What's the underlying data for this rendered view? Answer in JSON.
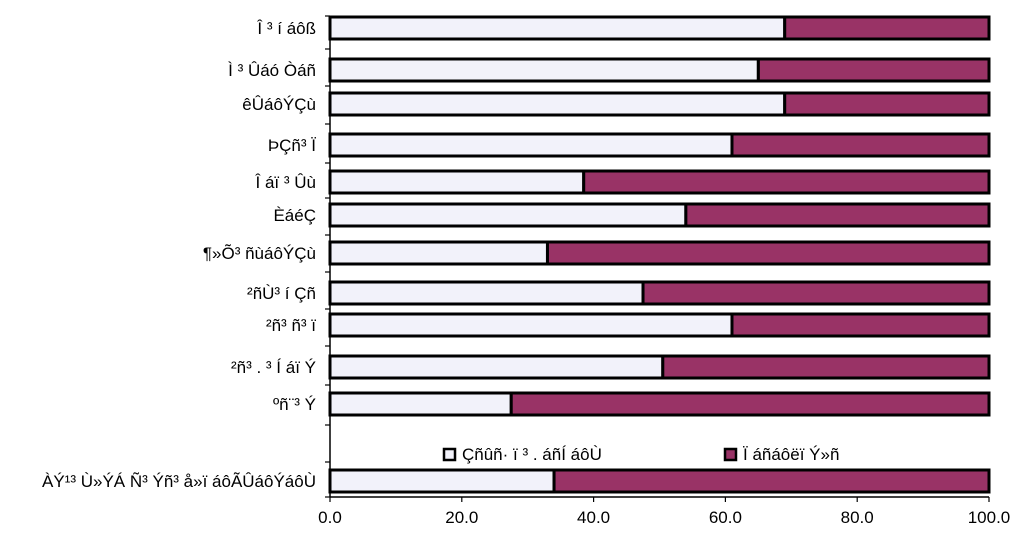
{
  "chart_data": {
    "type": "bar",
    "orientation": "horizontal",
    "stacked": true,
    "percent_stacked": true,
    "categories": [
      "Î ³ í áôß",
      "Ì ³ Ûáó Òáñ",
      "êÛáôÝÇù",
      "ÞÇñ³ Ï",
      "Î áï ³ Ûù",
      "ÈáéÇ",
      "¶»Õ³ ñùáôÝÇù",
      "²ñÙ³ í Çñ",
      "²ñ³ ñ³ ï",
      "²ñ³ . ³ Í áï Ý",
      "ºñ¨³ Ý",
      "ÀÝ¹³ Ù»ÝÁ Ñ³ Ýñ³ å»ï áôÃÛáôÝáôÙ"
    ],
    "series": [
      {
        "name": "Çñûñ· ï ³ . áñÍ áôÙ",
        "color": "#f2f2fa",
        "values": [
          69,
          65,
          69,
          61,
          38.5,
          54,
          33,
          47.5,
          61,
          50.5,
          27.5,
          34
        ]
      },
      {
        "name": "Ï áñáôëï Ý»ñ",
        "color": "#993366",
        "values": [
          31,
          35,
          31,
          39,
          61.5,
          46,
          67,
          52.5,
          39,
          49.5,
          72.5,
          66
        ]
      }
    ],
    "xlim": [
      0,
      100
    ],
    "xticks": [
      "0.0",
      "20.0",
      "40.0",
      "60.0",
      "80.0",
      "100.0"
    ],
    "legend_position": "inside-bottom",
    "grid": false
  }
}
